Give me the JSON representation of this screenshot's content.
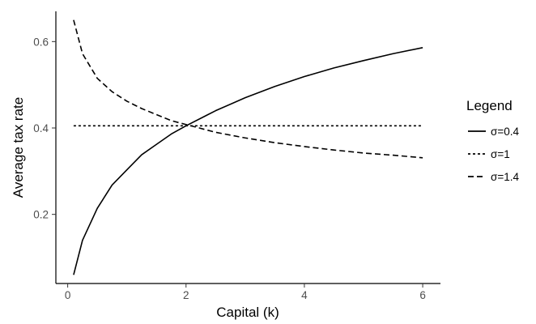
{
  "chart_data": {
    "type": "line",
    "xlabel": "Capital (k)",
    "ylabel": "Average tax rate",
    "xlim": [
      -0.2,
      6.3
    ],
    "ylim": [
      0.04,
      0.67
    ],
    "x_ticks": [
      0,
      2,
      4,
      6
    ],
    "y_ticks": [
      0.2,
      0.4,
      0.6
    ],
    "x_tick_labels": [
      "0",
      "2",
      "4",
      "6"
    ],
    "y_tick_labels": [
      "0.2",
      "0.4",
      "0.6"
    ],
    "grid": false,
    "legend": {
      "title": "Legend",
      "placement": "right"
    },
    "series": [
      {
        "name": "σ=0.4",
        "dash": "solid",
        "color": "#000000",
        "x": [
          0.1,
          0.25,
          0.5,
          0.75,
          1.0,
          1.25,
          1.5,
          1.75,
          2.0,
          2.5,
          3.0,
          3.5,
          4.0,
          4.5,
          5.0,
          5.5,
          6.0
        ],
        "y": [
          0.06,
          0.14,
          0.214,
          0.268,
          0.303,
          0.338,
          0.362,
          0.386,
          0.405,
          0.44,
          0.47,
          0.496,
          0.519,
          0.539,
          0.556,
          0.572,
          0.586
        ]
      },
      {
        "name": "σ=1",
        "dash": "dotted",
        "color": "#000000",
        "x": [
          0.1,
          6.0
        ],
        "y": [
          0.405,
          0.405
        ]
      },
      {
        "name": "σ=1.4",
        "dash": "dashed",
        "color": "#000000",
        "x": [
          0.1,
          0.25,
          0.5,
          0.75,
          1.0,
          1.25,
          1.5,
          1.75,
          2.0,
          2.5,
          3.0,
          3.5,
          4.0,
          4.5,
          5.0,
          5.5,
          6.0
        ],
        "y": [
          0.65,
          0.572,
          0.515,
          0.484,
          0.462,
          0.445,
          0.431,
          0.417,
          0.408,
          0.39,
          0.377,
          0.366,
          0.357,
          0.349,
          0.342,
          0.337,
          0.331
        ]
      }
    ]
  }
}
